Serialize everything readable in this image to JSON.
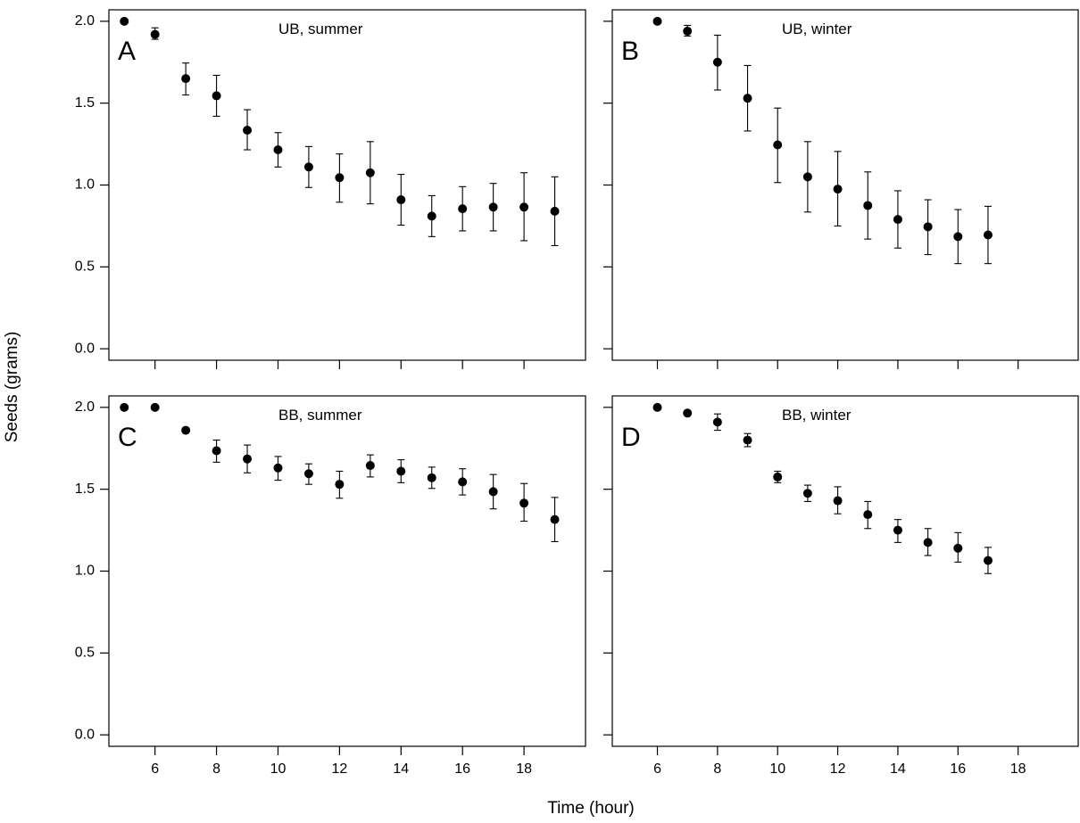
{
  "figure": {
    "ylabel": "Seeds (grams)",
    "xlabel": "Time (hour)"
  },
  "chart_data": [
    {
      "type": "scatter",
      "letter": "A",
      "title": "UB, summer",
      "xlim": [
        4.5,
        20
      ],
      "ylim": [
        -0.07,
        2.07
      ],
      "x_ticks": [
        6,
        8,
        10,
        12,
        14,
        16,
        18
      ],
      "y_ticks": [
        0.0,
        0.5,
        1.0,
        1.5,
        2.0
      ],
      "show_x_tick_labels": false,
      "show_y_tick_labels": true,
      "x": [
        5,
        6,
        7,
        8,
        9,
        10,
        11,
        12,
        13,
        14,
        15,
        16,
        17,
        18,
        19
      ],
      "y": [
        2.0,
        1.92,
        1.65,
        1.545,
        1.335,
        1.215,
        1.11,
        1.045,
        1.075,
        0.91,
        0.81,
        0.855,
        0.865,
        0.865,
        0.84
      ],
      "err_low": [
        2.0,
        1.89,
        1.55,
        1.42,
        1.215,
        1.11,
        0.985,
        0.895,
        0.885,
        0.755,
        0.685,
        0.72,
        0.72,
        0.66,
        0.63
      ],
      "err_high": [
        2.0,
        1.96,
        1.745,
        1.67,
        1.46,
        1.32,
        1.235,
        1.19,
        1.265,
        1.065,
        0.935,
        0.99,
        1.01,
        1.075,
        1.05
      ]
    },
    {
      "type": "scatter",
      "letter": "B",
      "title": "UB, winter",
      "xlim": [
        4.5,
        20
      ],
      "ylim": [
        -0.07,
        2.07
      ],
      "x_ticks": [
        6,
        8,
        10,
        12,
        14,
        16,
        18
      ],
      "y_ticks": [
        0.0,
        0.5,
        1.0,
        1.5,
        2.0
      ],
      "show_x_tick_labels": false,
      "show_y_tick_labels": false,
      "x": [
        6,
        7,
        8,
        9,
        10,
        11,
        12,
        13,
        14,
        15,
        16,
        17
      ],
      "y": [
        2.0,
        1.94,
        1.75,
        1.53,
        1.245,
        1.05,
        0.975,
        0.875,
        0.79,
        0.745,
        0.685,
        0.695
      ],
      "err_low": [
        2.0,
        1.91,
        1.58,
        1.33,
        1.015,
        0.835,
        0.75,
        0.67,
        0.615,
        0.575,
        0.52,
        0.52
      ],
      "err_high": [
        2.0,
        1.975,
        1.915,
        1.73,
        1.47,
        1.265,
        1.205,
        1.08,
        0.965,
        0.91,
        0.85,
        0.87
      ]
    },
    {
      "type": "scatter",
      "letter": "C",
      "title": "BB, summer",
      "xlim": [
        4.5,
        20
      ],
      "ylim": [
        -0.07,
        2.07
      ],
      "x_ticks": [
        6,
        8,
        10,
        12,
        14,
        16,
        18
      ],
      "y_ticks": [
        0.0,
        0.5,
        1.0,
        1.5,
        2.0
      ],
      "show_x_tick_labels": true,
      "show_y_tick_labels": true,
      "x": [
        5,
        6,
        7,
        8,
        9,
        10,
        11,
        12,
        13,
        14,
        15,
        16,
        17,
        18,
        19
      ],
      "y": [
        2.0,
        2.0,
        1.86,
        1.735,
        1.685,
        1.63,
        1.595,
        1.53,
        1.645,
        1.61,
        1.57,
        1.545,
        1.485,
        1.415,
        1.315
      ],
      "err_low": [
        2.0,
        2.0,
        1.86,
        1.665,
        1.6,
        1.555,
        1.53,
        1.445,
        1.575,
        1.54,
        1.505,
        1.465,
        1.38,
        1.305,
        1.18
      ],
      "err_high": [
        2.0,
        2.0,
        1.86,
        1.8,
        1.77,
        1.7,
        1.655,
        1.61,
        1.71,
        1.68,
        1.635,
        1.625,
        1.59,
        1.535,
        1.45
      ]
    },
    {
      "type": "scatter",
      "letter": "D",
      "title": "BB, winter",
      "xlim": [
        4.5,
        20
      ],
      "ylim": [
        -0.07,
        2.07
      ],
      "x_ticks": [
        6,
        8,
        10,
        12,
        14,
        16,
        18
      ],
      "y_ticks": [
        0.0,
        0.5,
        1.0,
        1.5,
        2.0
      ],
      "show_x_tick_labels": true,
      "show_y_tick_labels": false,
      "x": [
        6,
        7,
        8,
        9,
        10,
        11,
        12,
        13,
        14,
        15,
        16,
        17
      ],
      "y": [
        2.0,
        1.965,
        1.91,
        1.8,
        1.575,
        1.475,
        1.43,
        1.345,
        1.25,
        1.175,
        1.14,
        1.065
      ],
      "err_low": [
        2.0,
        1.965,
        1.86,
        1.76,
        1.54,
        1.425,
        1.35,
        1.26,
        1.175,
        1.095,
        1.055,
        0.985
      ],
      "err_high": [
        2.0,
        1.965,
        1.96,
        1.84,
        1.61,
        1.525,
        1.515,
        1.425,
        1.315,
        1.26,
        1.235,
        1.145
      ]
    }
  ]
}
